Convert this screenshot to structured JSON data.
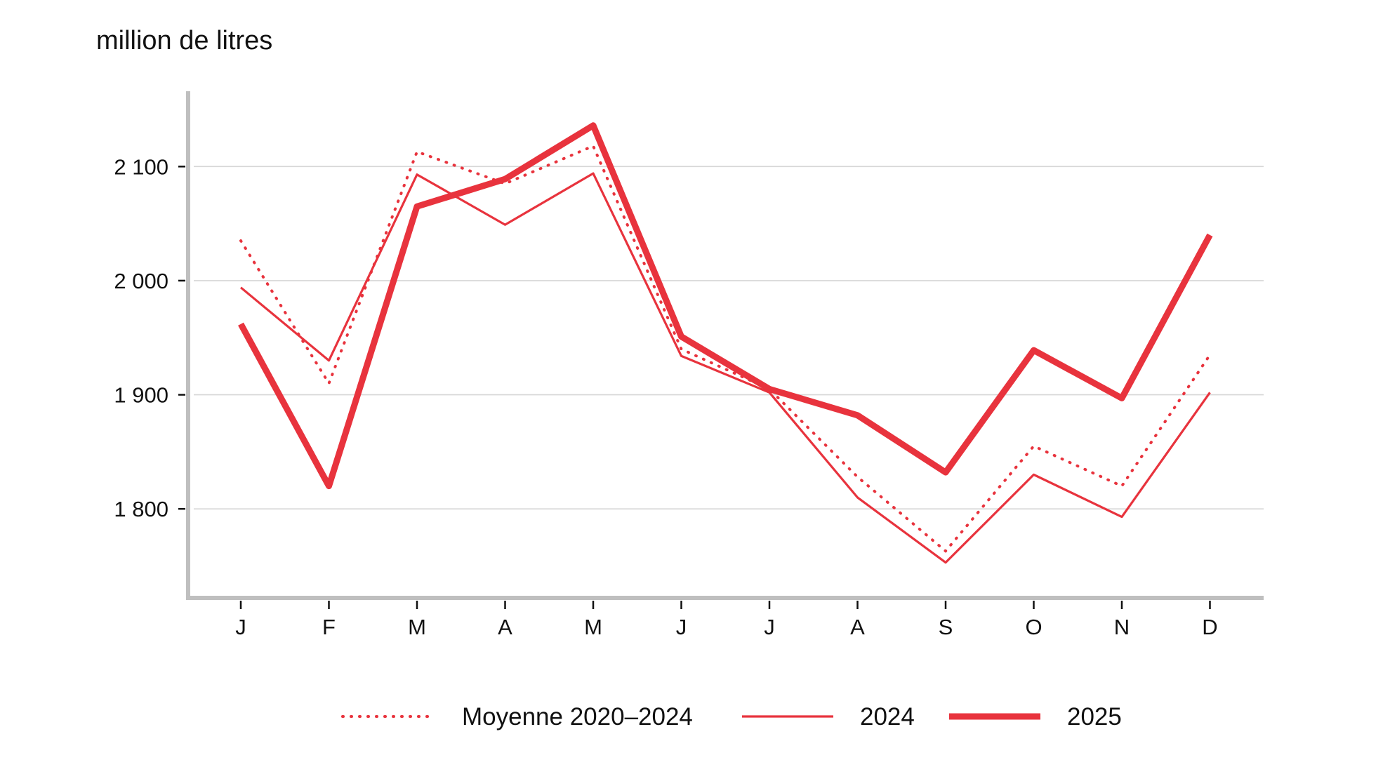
{
  "colors": {
    "series": "#e8333d",
    "axis": "#bfbfbf",
    "grid": "#d6d6d6",
    "text": "#111111"
  },
  "chart_data": {
    "type": "line",
    "unit_label": "million de litres",
    "categories": [
      "J",
      "F",
      "M",
      "A",
      "M",
      "J",
      "J",
      "A",
      "S",
      "O",
      "N",
      "D"
    ],
    "ylim": [
      1722,
      2166
    ],
    "y_ticks": [
      1800,
      1900,
      2000,
      2100
    ],
    "y_tick_labels": [
      "1 800",
      "1 900",
      "2 000",
      "2 100"
    ],
    "grid": "horizontal",
    "legend_position": "bottom",
    "series": [
      {
        "name": "Moyenne 2020–2024",
        "style": "dotted",
        "values": [
          2035,
          1910,
          2113,
          2085,
          2118,
          1940,
          1905,
          1828,
          1763,
          1855,
          1820,
          1935
        ]
      },
      {
        "name": "2024",
        "style": "thin",
        "values": [
          1994,
          1930,
          2093,
          2049,
          2094,
          1934,
          1902,
          1810,
          1753,
          1830,
          1793,
          1902
        ]
      },
      {
        "name": "2025",
        "style": "thick",
        "values": [
          1962,
          1820,
          2065,
          2089,
          2136,
          1951,
          1905,
          1882,
          1832,
          1939,
          1897,
          2040
        ]
      }
    ]
  }
}
